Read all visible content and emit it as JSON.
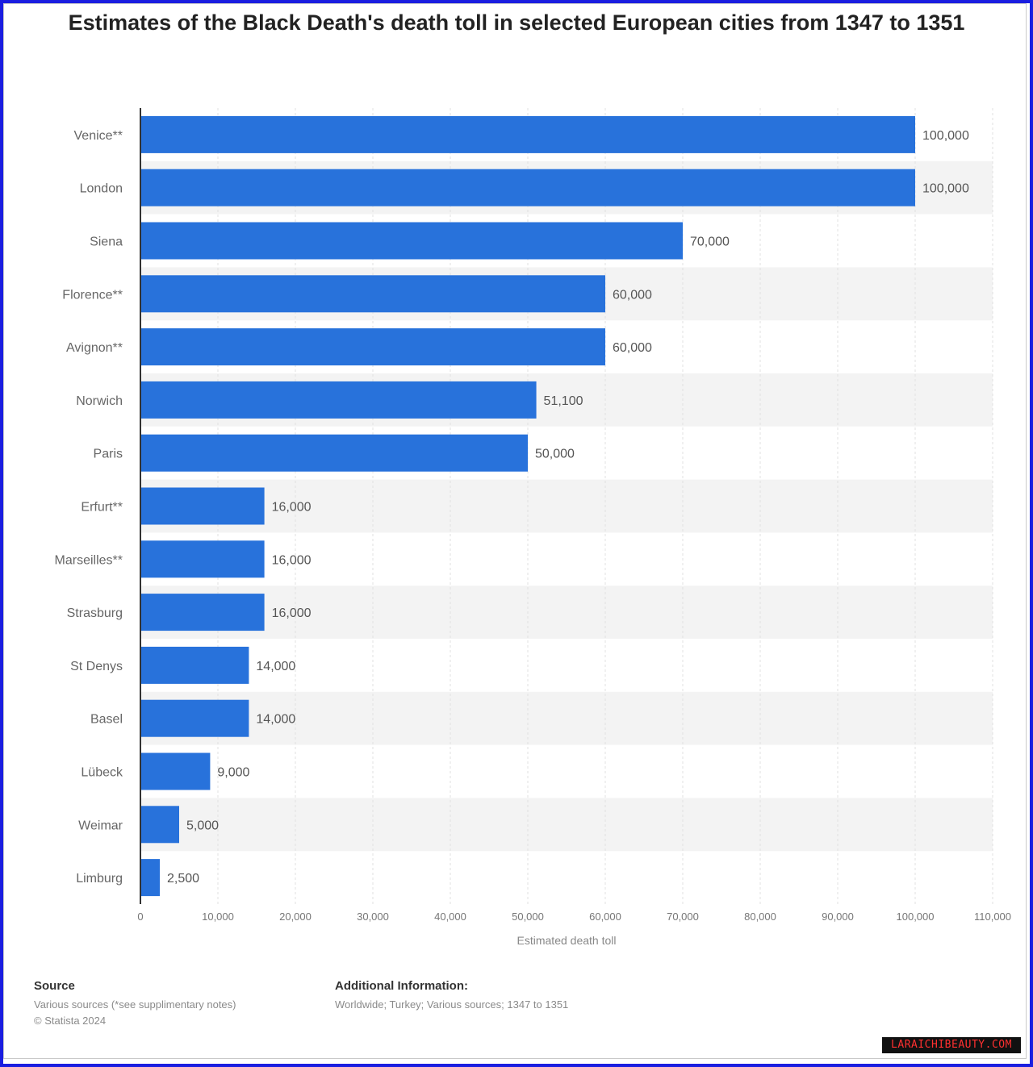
{
  "chart_data": {
    "type": "bar",
    "orientation": "horizontal",
    "title": "Estimates of the Black Death's death toll in selected European cities from 1347 to 1351",
    "xlabel": "Estimated death toll",
    "categories": [
      "Venice**",
      "London",
      "Siena",
      "Florence**",
      "Avignon**",
      "Norwich",
      "Paris",
      "Erfurt**",
      "Marseilles**",
      "Strasburg",
      "St Denys",
      "Basel",
      "Lübeck",
      "Weimar",
      "Limburg"
    ],
    "values": [
      100000,
      100000,
      70000,
      60000,
      60000,
      51100,
      50000,
      16000,
      16000,
      16000,
      14000,
      14000,
      9000,
      5000,
      2500
    ],
    "value_labels": [
      "100,000",
      "100,000",
      "70,000",
      "60,000",
      "60,000",
      "51,100",
      "50,000",
      "16,000",
      "16,000",
      "16,000",
      "14,000",
      "14,000",
      "9,000",
      "5,000",
      "2,500"
    ],
    "xticks": [
      0,
      10000,
      20000,
      30000,
      40000,
      50000,
      60000,
      70000,
      80000,
      90000,
      100000,
      110000
    ],
    "xtick_labels": [
      "0",
      "10,000",
      "20,000",
      "30,000",
      "40,000",
      "50,000",
      "60,000",
      "70,000",
      "80,000",
      "90,000",
      "100,000",
      "110,000"
    ],
    "xlim": [
      0,
      110000
    ],
    "grid": true,
    "bar_color": "#2872db"
  },
  "source": {
    "heading": "Source",
    "lines": [
      "Various sources (*see supplimentary notes)",
      "© Statista 2024"
    ]
  },
  "additional": {
    "heading": "Additional Information:",
    "text": "Worldwide; Turkey; Various sources; 1347 to 1351"
  },
  "watermark": "LARAICHIBEAUTY.COM"
}
